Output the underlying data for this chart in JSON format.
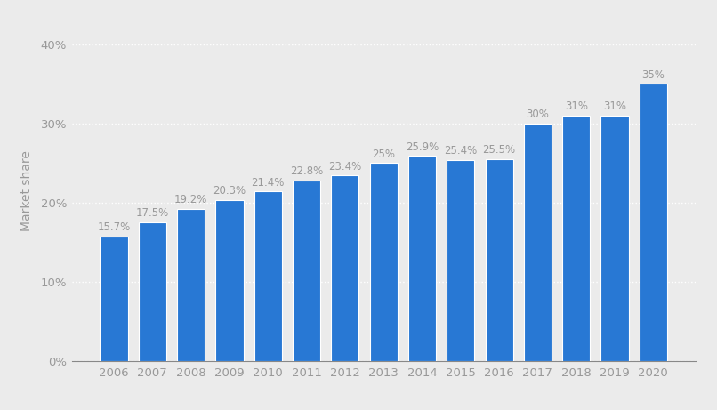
{
  "years": [
    2006,
    2007,
    2008,
    2009,
    2010,
    2011,
    2012,
    2013,
    2014,
    2015,
    2016,
    2017,
    2018,
    2019,
    2020
  ],
  "values": [
    15.7,
    17.5,
    19.2,
    20.3,
    21.4,
    22.8,
    23.4,
    25.0,
    25.9,
    25.4,
    25.5,
    30.0,
    31.0,
    31.0,
    35.0
  ],
  "labels": [
    "15.7%",
    "17.5%",
    "19.2%",
    "20.3%",
    "21.4%",
    "22.8%",
    "23.4%",
    "25%",
    "25.9%",
    "25.4%",
    "25.5%",
    "30%",
    "31%",
    "31%",
    "35%"
  ],
  "bar_color": "#2878d4",
  "background_color": "#ebebeb",
  "plot_background": "#ebebeb",
  "ylabel": "Market share",
  "yticks": [
    0,
    10,
    20,
    30,
    40
  ],
  "ytick_labels": [
    "0%",
    "10%",
    "20%",
    "30%",
    "40%"
  ],
  "ylim": [
    0,
    43
  ],
  "grid_color": "#ffffff",
  "label_color": "#999999",
  "tick_color": "#999999",
  "bar_width": 0.72,
  "label_fontsize": 8.5,
  "axis_fontsize": 10,
  "tick_fontsize": 9.5
}
